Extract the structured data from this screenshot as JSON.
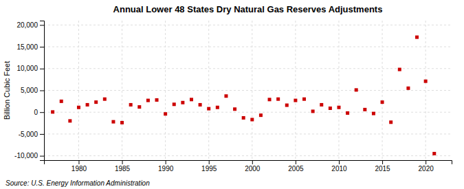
{
  "chart_data": {
    "type": "scatter",
    "title": "Annual Lower 48 States Dry Natural Gas Reserves Adjustments",
    "ylabel": "Billion Cubic Feet",
    "annotations": [
      "Source: U.S. Energy Information Administration"
    ],
    "x": [
      1977,
      1978,
      1979,
      1980,
      1981,
      1982,
      1983,
      1984,
      1985,
      1986,
      1987,
      1988,
      1989,
      1990,
      1991,
      1992,
      1993,
      1994,
      1995,
      1996,
      1997,
      1998,
      1999,
      2000,
      2001,
      2002,
      2003,
      2004,
      2005,
      2006,
      2007,
      2008,
      2009,
      2010,
      2011,
      2012,
      2013,
      2014,
      2015,
      2016,
      2017,
      2018,
      2019,
      2020,
      2021
    ],
    "values": [
      50,
      2500,
      -2000,
      1100,
      1700,
      2300,
      3000,
      -2200,
      -2400,
      1700,
      1200,
      2700,
      2800,
      -400,
      1800,
      2200,
      2900,
      1700,
      800,
      1100,
      3700,
      700,
      -1300,
      -1700,
      -700,
      2900,
      3000,
      1600,
      2700,
      3000,
      200,
      1700,
      900,
      1100,
      -200,
      5100,
      600,
      -300,
      2300,
      -2300,
      9800,
      5500,
      17200,
      7100,
      -9500
    ],
    "color": "#cc0000",
    "marker": "square",
    "xlim": [
      1976,
      2023
    ],
    "xticks": [
      1980,
      1985,
      1990,
      1995,
      2000,
      2005,
      2010,
      2015,
      2020
    ],
    "ylim": [
      -11000,
      21000
    ],
    "yticks": [
      {
        "value": -10000,
        "label": "-10,000"
      },
      {
        "value": -5000,
        "label": "-5,000"
      },
      0,
      {
        "value": 5000,
        "label": "5,000"
      },
      {
        "value": 10000,
        "label": "10,000"
      },
      {
        "value": 15000,
        "label": "15,000"
      },
      {
        "value": 20000,
        "label": "20,000"
      }
    ],
    "grid": true
  }
}
